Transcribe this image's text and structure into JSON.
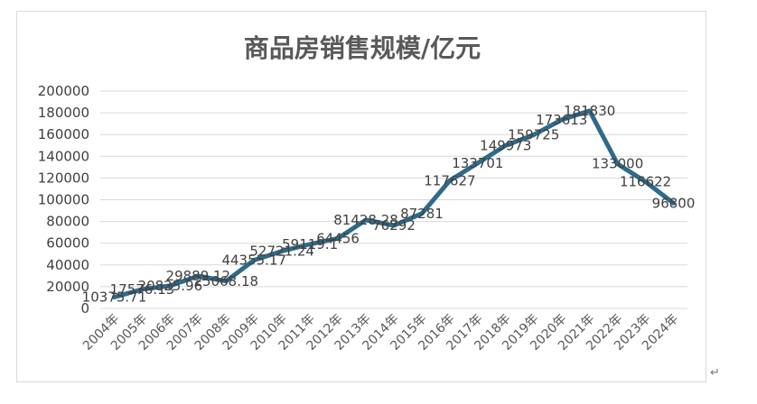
{
  "chart_data": {
    "type": "line",
    "title": "商品房销售规模/亿元",
    "xlabel": "",
    "ylabel": "",
    "ylim": [
      0,
      200000
    ],
    "yticks": [
      "0",
      "20000",
      "40000",
      "60000",
      "80000",
      "100000",
      "120000",
      "140000",
      "160000",
      "180000",
      "200000"
    ],
    "grid": true,
    "legend": "none",
    "categories": [
      "2004年",
      "2005年",
      "2006年",
      "2007年",
      "2008年",
      "2009年",
      "2010年",
      "2011年",
      "2012年",
      "2013年",
      "2014年",
      "2015年",
      "2016年",
      "2017年",
      "2018年",
      "2019年",
      "2020年",
      "2021年",
      "2022年",
      "2023年",
      "2024年"
    ],
    "series": [
      {
        "values": [
          10375.71,
          17576.13,
          20825.96,
          29889.12,
          25068.18,
          44355.17,
          52721.24,
          59119.1,
          64456,
          81428.28,
          76292,
          87281,
          117627,
          133701,
          149973,
          159725,
          173613,
          181830,
          133000,
          116622,
          96800
        ],
        "labels": [
          "10375.71",
          "17576.13",
          "20825.96",
          "29889.12",
          "25068.18",
          "44355.17",
          "52721.24",
          "59119.1",
          "64456",
          "81428.28",
          "76292",
          "87281",
          "117627",
          "133701",
          "149973",
          "159725",
          "173613",
          "181830",
          "133000",
          "116622",
          "96800"
        ],
        "color": "#2e6a8a"
      }
    ]
  },
  "return_mark": "↵"
}
